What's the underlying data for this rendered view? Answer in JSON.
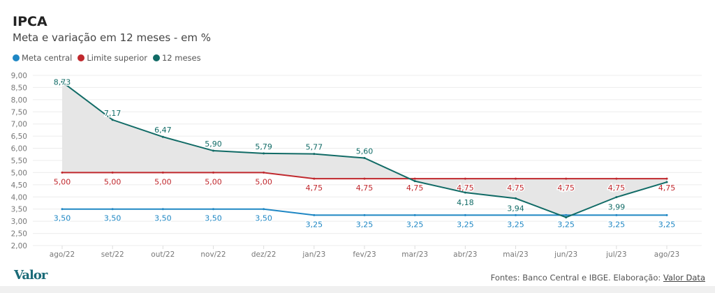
{
  "chart_data": {
    "type": "line",
    "title": "IPCA",
    "subtitle": "Meta e variação em 12 meses - em %",
    "categories": [
      "ago/22",
      "set/22",
      "out/22",
      "nov/22",
      "dez/22",
      "jan/23",
      "fev/23",
      "mar/23",
      "abr/23",
      "mai/23",
      "jun/23",
      "jul/23",
      "ago/23"
    ],
    "ylim": [
      2,
      9
    ],
    "yticks": [
      "2,00",
      "2,50",
      "3,00",
      "3,50",
      "4,00",
      "4,50",
      "5,00",
      "5,50",
      "6,00",
      "6,50",
      "7,00",
      "7,50",
      "8,00",
      "8,50",
      "9,00"
    ],
    "series": [
      {
        "name": "Meta central",
        "color": "#1f87c4",
        "values": [
          3.5,
          3.5,
          3.5,
          3.5,
          3.5,
          3.25,
          3.25,
          3.25,
          3.25,
          3.25,
          3.25,
          3.25,
          3.25
        ],
        "labels": [
          "3,50",
          "3,50",
          "3,50",
          "3,50",
          "3,50",
          "3,25",
          "3,25",
          "3,25",
          "3,25",
          "3,25",
          "3,25",
          "3,25",
          "3,25"
        ]
      },
      {
        "name": "Limite superior",
        "color": "#c0282d",
        "values": [
          5,
          5,
          5,
          5,
          5,
          4.75,
          4.75,
          4.75,
          4.75,
          4.75,
          4.75,
          4.75,
          4.75
        ],
        "labels": [
          "5,00",
          "5,00",
          "5,00",
          "5,00",
          "5,00",
          "4,75",
          "4,75",
          "4,75",
          "4,75",
          "4,75",
          "4,75",
          "4,75",
          "4,75"
        ]
      },
      {
        "name": "12 meses",
        "color": "#116b66",
        "values": [
          8.73,
          7.17,
          6.47,
          5.9,
          5.79,
          5.77,
          5.6,
          4.65,
          4.18,
          3.94,
          3.16,
          3.99,
          4.61
        ],
        "labels": [
          "8,73",
          "7,17",
          "6,47",
          "5,90",
          "5,79",
          "5,77",
          "5,60",
          "",
          "4,18",
          "3,94",
          "",
          "3,99",
          ""
        ]
      }
    ],
    "legend": "top-left",
    "grid": true
  },
  "footer": {
    "logo": "Valor",
    "source": "Fontes: Banco Central e IBGE. Elaboração: ",
    "source_link": "Valor Data"
  }
}
